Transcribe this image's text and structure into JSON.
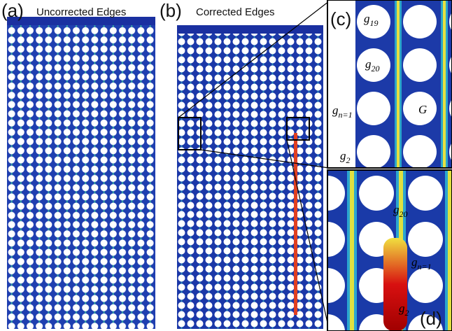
{
  "panels": [
    {
      "label": "(a)",
      "title": "Uncorrected Edges"
    },
    {
      "label": "(b)",
      "title": "Corrected Edges"
    },
    {
      "label": "(c)"
    },
    {
      "label": "(d)"
    }
  ],
  "annotations_c": [
    {
      "base": "g",
      "sub": "19"
    },
    {
      "base": "g",
      "sub": "20"
    },
    {
      "base": "g",
      "sub": "n=1"
    },
    {
      "base": "G"
    },
    {
      "base": "g",
      "sub": "2"
    }
  ],
  "annotations_d": [
    {
      "base": "g",
      "sub": "20"
    },
    {
      "base": "g",
      "sub": "n=1"
    },
    {
      "base": "g",
      "sub": "2"
    }
  ]
}
